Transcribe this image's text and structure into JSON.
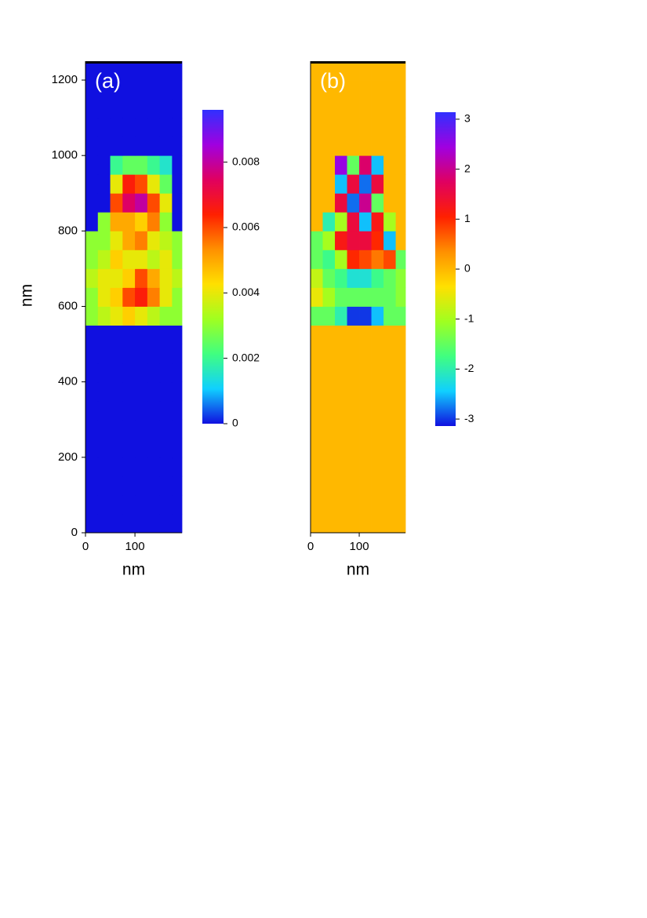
{
  "chart_data": [
    {
      "type": "heatmap",
      "label": "(a)",
      "xlabel": "nm",
      "ylabel": "nm",
      "xlim": [
        0,
        195
      ],
      "ylim": [
        0,
        1250
      ],
      "xticks": [
        0,
        100
      ],
      "yticks": [
        0,
        200,
        400,
        600,
        800,
        1000,
        1200
      ],
      "xbins": [
        0,
        25,
        50,
        75,
        100,
        125,
        150,
        175,
        195
      ],
      "ybins": [
        0,
        50,
        100,
        150,
        200,
        250,
        300,
        350,
        400,
        450,
        500,
        550,
        600,
        650,
        700,
        750,
        800,
        850,
        900,
        950,
        1000,
        1050,
        1100,
        1150,
        1200,
        1250
      ],
      "zlim": [
        0,
        0.0096
      ],
      "zticks": [
        0,
        0.002,
        0.004,
        0.006,
        0.008
      ],
      "colormap": [
        "#1010e0",
        "#10d0ff",
        "#40ff80",
        "#a0ff20",
        "#ffe000",
        "#ff9000",
        "#ff2000",
        "#e00060",
        "#a000e0",
        "#3030ff"
      ],
      "z": [
        [
          0,
          0,
          0,
          0,
          0,
          0,
          0,
          0
        ],
        [
          0,
          0,
          0,
          0,
          0,
          0,
          0,
          0
        ],
        [
          0,
          0,
          0,
          0,
          0,
          0,
          0,
          0
        ],
        [
          0,
          0,
          0,
          0,
          0,
          0,
          0,
          0
        ],
        [
          0,
          0,
          0,
          0,
          0,
          0,
          0,
          0
        ],
        [
          0,
          0,
          0,
          0,
          0,
          0,
          0,
          0
        ],
        [
          0,
          0,
          0,
          0,
          0,
          0,
          0,
          0
        ],
        [
          0,
          0,
          0,
          0,
          0,
          0,
          0,
          0
        ],
        [
          0,
          0,
          0,
          0,
          0,
          0,
          0,
          0
        ],
        [
          0,
          0,
          0,
          0,
          0,
          0,
          0,
          0
        ],
        [
          0,
          0,
          0,
          0,
          0,
          0,
          0,
          0
        ],
        [
          0.003,
          0.0035,
          0.004,
          0.0045,
          0.004,
          0.0035,
          0.003,
          0.003
        ],
        [
          0.003,
          0.004,
          0.0045,
          0.006,
          0.0065,
          0.0055,
          0.004,
          0.003
        ],
        [
          0.0035,
          0.004,
          0.004,
          0.0045,
          0.006,
          0.005,
          0.004,
          0.0035
        ],
        [
          0.003,
          0.0035,
          0.0045,
          0.004,
          0.004,
          0.0035,
          0.004,
          0.003
        ],
        [
          0.003,
          0.003,
          0.004,
          0.005,
          0.0055,
          0.004,
          0.0035,
          0.003
        ],
        [
          0,
          0.003,
          0.005,
          0.005,
          0.0045,
          0.0055,
          0.003,
          0
        ],
        [
          0,
          0,
          0.006,
          0.0075,
          0.008,
          0.006,
          0.004,
          0
        ],
        [
          0,
          0,
          0.004,
          0.0065,
          0.006,
          0.004,
          0.0025,
          0
        ],
        [
          0,
          0,
          0.002,
          0.0025,
          0.0025,
          0.002,
          0.0015,
          0
        ],
        [
          0,
          0,
          0,
          0,
          0,
          0,
          0,
          0
        ],
        [
          0,
          0,
          0,
          0,
          0,
          0,
          0,
          0
        ],
        [
          0,
          0,
          0,
          0,
          0,
          0,
          0,
          0
        ],
        [
          0,
          0,
          0,
          0,
          0,
          0,
          0,
          0
        ],
        [
          0,
          0,
          0,
          0,
          0,
          0,
          0,
          0
        ]
      ]
    },
    {
      "type": "heatmap",
      "label": "(b)",
      "xlabel": "nm",
      "xlim": [
        0,
        195
      ],
      "ylim": [
        0,
        1250
      ],
      "xticks": [
        0,
        100
      ],
      "xbins": [
        0,
        25,
        50,
        75,
        100,
        125,
        150,
        175,
        195
      ],
      "ybins": [
        0,
        50,
        100,
        150,
        200,
        250,
        300,
        350,
        400,
        450,
        500,
        550,
        600,
        650,
        700,
        750,
        800,
        850,
        900,
        950,
        1000,
        1050,
        1100,
        1150,
        1200,
        1250
      ],
      "zlim": [
        -3.14,
        3.14
      ],
      "zticks": [
        -3,
        -2,
        -1,
        0,
        1,
        2,
        3
      ],
      "colormap": [
        "#1010e0",
        "#10d0ff",
        "#40ff80",
        "#a0ff20",
        "#ffe000",
        "#ff9000",
        "#ff2000",
        "#e00060",
        "#a000e0",
        "#3030ff"
      ],
      "z": [
        [
          0,
          0,
          0,
          0,
          0,
          0,
          0,
          0
        ],
        [
          0,
          0,
          0,
          0,
          0,
          0,
          0,
          0
        ],
        [
          0,
          0,
          0,
          0,
          0,
          0,
          0,
          0
        ],
        [
          0,
          0,
          0,
          0,
          0,
          0,
          0,
          0
        ],
        [
          0,
          0,
          0,
          0,
          0,
          0,
          0,
          0
        ],
        [
          0,
          0,
          0,
          0,
          0,
          0,
          0,
          0
        ],
        [
          0,
          0,
          0,
          0,
          0,
          0,
          0,
          0
        ],
        [
          0,
          0,
          0,
          0,
          0,
          0,
          0,
          0
        ],
        [
          0,
          0,
          0,
          0,
          0,
          0,
          0,
          0
        ],
        [
          0,
          0,
          0,
          0,
          0,
          0,
          0,
          0
        ],
        [
          0,
          0,
          0,
          0,
          0,
          0,
          0,
          0
        ],
        [
          -1.5,
          -1.5,
          -2,
          -3,
          -3,
          -2.5,
          -1.5,
          -1.5
        ],
        [
          -0.5,
          -1,
          -1.5,
          -1.5,
          -1.5,
          -1.5,
          -1.5,
          -1.2
        ],
        [
          -0.8,
          -1.5,
          -1.8,
          -2.2,
          -2.2,
          -1.8,
          -1.5,
          -1.2
        ],
        [
          -1.5,
          -1.8,
          -1,
          1,
          0.8,
          0.5,
          0.8,
          -1.5
        ],
        [
          -1.5,
          -1,
          1.2,
          1.5,
          1.5,
          1,
          -2.5,
          0
        ],
        [
          0,
          -2,
          -1,
          1.5,
          -2.5,
          1.2,
          -1,
          0
        ],
        [
          0,
          0,
          1.5,
          -2.8,
          2,
          -1.5,
          0,
          0
        ],
        [
          0,
          0,
          -2.5,
          1.5,
          -2.8,
          1.5,
          0,
          0
        ],
        [
          0,
          0,
          2.5,
          -1.5,
          1.8,
          -2.5,
          0,
          0
        ],
        [
          0,
          0,
          0,
          0,
          0,
          0,
          0,
          0
        ],
        [
          0,
          0,
          0,
          0,
          0,
          0,
          0,
          0
        ],
        [
          0,
          0,
          0,
          0,
          0,
          0,
          0,
          0
        ],
        [
          0,
          0,
          0,
          0,
          0,
          0,
          0,
          0
        ],
        [
          0,
          0,
          0,
          0,
          0,
          0,
          0,
          0
        ]
      ]
    }
  ]
}
